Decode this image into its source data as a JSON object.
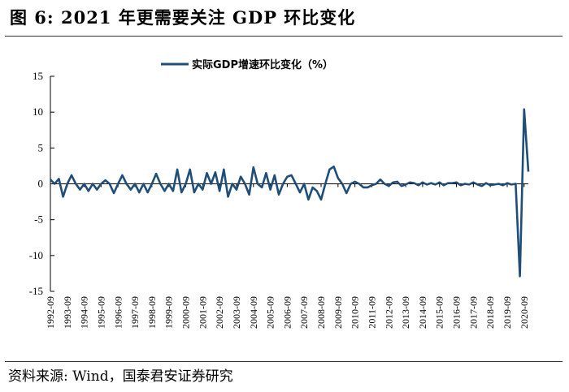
{
  "figure": {
    "title": "图 6:  2021 年更需要关注 GDP 环比变化",
    "source": "资料来源:    Wind，国泰君安证券研究"
  },
  "chart_data": {
    "type": "line",
    "title": "",
    "xlabel": "",
    "ylabel": "",
    "ylim": [
      -15,
      15
    ],
    "yticks": [
      15,
      10,
      5,
      0,
      -5,
      -10,
      -15
    ],
    "grid": false,
    "legend_position": "top-center",
    "line_color": "#1f4e79",
    "x_tick_labels": [
      "1992-09",
      "1993-09",
      "1994-09",
      "1995-09",
      "1996-09",
      "1997-09",
      "1998-09",
      "1999-09",
      "2000-09",
      "2001-09",
      "2002-09",
      "2003-09",
      "2004-09",
      "2005-09",
      "2006-09",
      "2007-09",
      "2008-09",
      "2009-09",
      "2010-09",
      "2011-09",
      "2012-09",
      "2013-09",
      "2014-09",
      "2015-09",
      "2016-09",
      "2017-09",
      "2018-09",
      "2019-09",
      "2020-09"
    ],
    "series": [
      {
        "name": "实际GDP增速环比变化（%）",
        "x": [
          "1992-09",
          "1992-12",
          "1993-03",
          "1993-06",
          "1993-09",
          "1993-12",
          "1994-03",
          "1994-06",
          "1994-09",
          "1994-12",
          "1995-03",
          "1995-06",
          "1995-09",
          "1995-12",
          "1996-03",
          "1996-06",
          "1996-09",
          "1996-12",
          "1997-03",
          "1997-06",
          "1997-09",
          "1997-12",
          "1998-03",
          "1998-06",
          "1998-09",
          "1998-12",
          "1999-03",
          "1999-06",
          "1999-09",
          "1999-12",
          "2000-03",
          "2000-06",
          "2000-09",
          "2000-12",
          "2001-03",
          "2001-06",
          "2001-09",
          "2001-12",
          "2002-03",
          "2002-06",
          "2002-09",
          "2002-12",
          "2003-03",
          "2003-06",
          "2003-09",
          "2003-12",
          "2004-03",
          "2004-06",
          "2004-09",
          "2004-12",
          "2005-03",
          "2005-06",
          "2005-09",
          "2005-12",
          "2006-03",
          "2006-06",
          "2006-09",
          "2006-12",
          "2007-03",
          "2007-06",
          "2007-09",
          "2007-12",
          "2008-03",
          "2008-06",
          "2008-09",
          "2008-12",
          "2009-03",
          "2009-06",
          "2009-09",
          "2009-12",
          "2010-03",
          "2010-06",
          "2010-09",
          "2010-12",
          "2011-03",
          "2011-06",
          "2011-09",
          "2011-12",
          "2012-03",
          "2012-06",
          "2012-09",
          "2012-12",
          "2013-03",
          "2013-06",
          "2013-09",
          "2013-12",
          "2014-03",
          "2014-06",
          "2014-09",
          "2014-12",
          "2015-03",
          "2015-06",
          "2015-09",
          "2015-12",
          "2016-03",
          "2016-06",
          "2016-09",
          "2016-12",
          "2017-03",
          "2017-06",
          "2017-09",
          "2017-12",
          "2018-03",
          "2018-06",
          "2018-09",
          "2018-12",
          "2019-03",
          "2019-06",
          "2019-09",
          "2019-12",
          "2020-03",
          "2020-06",
          "2020-09",
          "2020-12"
        ],
        "values": [
          0.6,
          0.0,
          0.7,
          -1.8,
          0.0,
          1.2,
          0.0,
          -0.8,
          0.0,
          -1.0,
          0.0,
          -0.8,
          0.0,
          0.5,
          0.0,
          -1.3,
          0.0,
          1.2,
          0.0,
          -0.8,
          0.0,
          -1.2,
          0.0,
          -1.2,
          0.0,
          1.4,
          0.0,
          -1.0,
          0.0,
          -1.0,
          2.0,
          -1.2,
          0.0,
          2.0,
          -1.2,
          0.0,
          -0.8,
          1.5,
          0.0,
          1.6,
          -1.0,
          2.0,
          -1.8,
          0.0,
          -0.8,
          1.0,
          0.0,
          -1.5,
          2.3,
          0.0,
          -0.5,
          1.5,
          -0.8,
          1.2,
          -1.5,
          0.0,
          1.0,
          1.2,
          0.0,
          -1.2,
          0.0,
          -2.2,
          -0.5,
          -1.0,
          -2.2,
          0.0,
          2.0,
          2.4,
          0.8,
          0.0,
          -1.3,
          0.0,
          0.3,
          0.0,
          -0.5,
          -0.5,
          -0.2,
          0.0,
          0.6,
          0.0,
          -0.3,
          0.2,
          0.3,
          -0.3,
          -0.1,
          0.2,
          0.1,
          -0.2,
          0.2,
          -0.1,
          0.1,
          -0.1,
          0.2,
          -0.2,
          0.1,
          0.1,
          0.2,
          -0.2,
          0.0,
          -0.1,
          0.2,
          -0.1,
          -0.3,
          0.1,
          -0.2,
          -0.1,
          0.0,
          -0.2,
          0.1,
          -0.1,
          0.0,
          -12.9,
          10.4,
          1.7
        ]
      }
    ]
  }
}
